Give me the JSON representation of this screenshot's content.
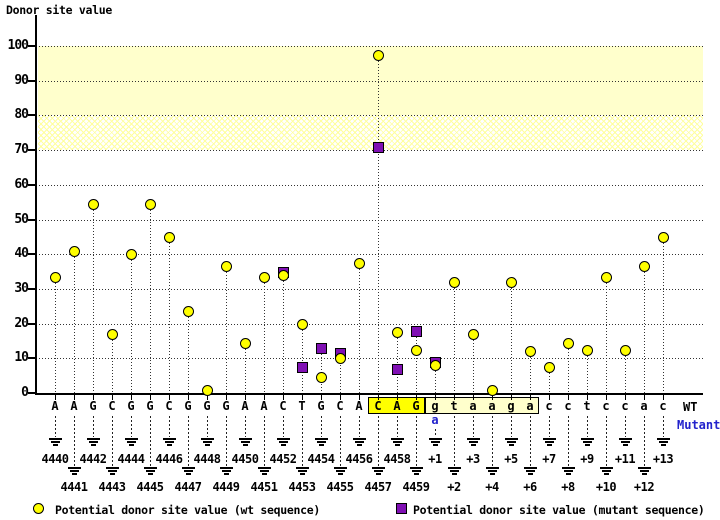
{
  "title": "Donor site value",
  "right_labels": {
    "wt": "WT",
    "mutant": "Mutant"
  },
  "legend": {
    "wt": {
      "label": "Potential donor site value (wt sequence)",
      "marker": "circle",
      "color": "#ffff00"
    },
    "mutant": {
      "label": "Potential donor site value (mutant sequence)",
      "marker": "square",
      "color": "#8010b4"
    }
  },
  "colors": {
    "wt_marker": "#ffff00",
    "mutant_marker": "#8010b4",
    "mutant_text": "#2222cc",
    "band_solid": "#ffffcc",
    "consensus_box": "#ffff00",
    "intron_box": "#ffffcc"
  },
  "chart_data": {
    "type": "scatter",
    "subtype": "stem-lollipop",
    "title": "Donor site value",
    "ylabel": "Donor site value",
    "ylim": [
      0,
      107
    ],
    "y_ticks": [
      0,
      10,
      20,
      30,
      40,
      50,
      60,
      70,
      80,
      90,
      100
    ],
    "grid": "dotted-horizontal",
    "legend_position": "bottom",
    "highlight_bands": [
      {
        "range": [
          80,
          100
        ],
        "style": "solid"
      },
      {
        "range": [
          70,
          80
        ],
        "style": "crosshatch"
      }
    ],
    "series_names": [
      "Potential donor site value (wt sequence)",
      "Potential donor site value (mutant sequence)"
    ],
    "positions": [
      {
        "letter": "A",
        "label": "4440",
        "wt": 33.5,
        "mutant": null
      },
      {
        "letter": "A",
        "label": "4441",
        "wt": 41,
        "mutant": null
      },
      {
        "letter": "G",
        "label": "4442",
        "wt": 54.5,
        "mutant": null
      },
      {
        "letter": "C",
        "label": "4443",
        "wt": 17,
        "mutant": null
      },
      {
        "letter": "G",
        "label": "4444",
        "wt": 40,
        "mutant": null
      },
      {
        "letter": "G",
        "label": "4445",
        "wt": 54.5,
        "mutant": null
      },
      {
        "letter": "C",
        "label": "4446",
        "wt": 45,
        "mutant": null
      },
      {
        "letter": "G",
        "label": "4447",
        "wt": 23.5,
        "mutant": null
      },
      {
        "letter": "G",
        "label": "4448",
        "wt": 1,
        "mutant": null
      },
      {
        "letter": "G",
        "label": "4449",
        "wt": 36.5,
        "mutant": null
      },
      {
        "letter": "A",
        "label": "4450",
        "wt": 14.5,
        "mutant": null
      },
      {
        "letter": "A",
        "label": "4451",
        "wt": 33.5,
        "mutant": null
      },
      {
        "letter": "C",
        "label": "4452",
        "wt": 34,
        "mutant": 35
      },
      {
        "letter": "T",
        "label": "4453",
        "wt": 20,
        "mutant": 7.5
      },
      {
        "letter": "G",
        "label": "4454",
        "wt": 4.5,
        "mutant": 13
      },
      {
        "letter": "C",
        "label": "4455",
        "wt": 10,
        "mutant": 11.5
      },
      {
        "letter": "A",
        "label": "4456",
        "wt": 37.5,
        "mutant": null
      },
      {
        "letter": "C",
        "label": "4457",
        "wt": 97.5,
        "mutant": 71
      },
      {
        "letter": "A",
        "label": "4458",
        "wt": 17.5,
        "mutant": 7
      },
      {
        "letter": "G",
        "label": "4459",
        "wt": 12.5,
        "mutant": 18
      },
      {
        "letter": "g",
        "label": "+1",
        "wt": 8,
        "mutant": 9,
        "mutant_letter": "a"
      },
      {
        "letter": "t",
        "label": "+2",
        "wt": 32,
        "mutant": null
      },
      {
        "letter": "a",
        "label": "+3",
        "wt": 17,
        "mutant": null
      },
      {
        "letter": "a",
        "label": "+4",
        "wt": 1,
        "mutant": null
      },
      {
        "letter": "g",
        "label": "+5",
        "wt": 32,
        "mutant": null
      },
      {
        "letter": "a",
        "label": "+6",
        "wt": 12,
        "mutant": null
      },
      {
        "letter": "c",
        "label": "+7",
        "wt": 7.5,
        "mutant": null
      },
      {
        "letter": "c",
        "label": "+8",
        "wt": 14.5,
        "mutant": null
      },
      {
        "letter": "t",
        "label": "+9",
        "wt": 12.5,
        "mutant": null
      },
      {
        "letter": "c",
        "label": "+10",
        "wt": 33.5,
        "mutant": null
      },
      {
        "letter": "c",
        "label": "+11",
        "wt": 12.5,
        "mutant": null
      },
      {
        "letter": "a",
        "label": "+12",
        "wt": 36.5,
        "mutant": null
      },
      {
        "letter": "c",
        "label": "+13",
        "wt": 45,
        "mutant": null
      }
    ],
    "sequence_boxes": [
      {
        "letters": "CAG",
        "from_index": 17,
        "to_index": 19,
        "fill": "#ffff00"
      },
      {
        "letters": "gtaaga",
        "from_index": 20,
        "to_index": 25,
        "fill": "#ffffcc"
      }
    ],
    "mutation": {
      "position": "+1",
      "wt_base": "g",
      "mutant_base": "a"
    }
  }
}
